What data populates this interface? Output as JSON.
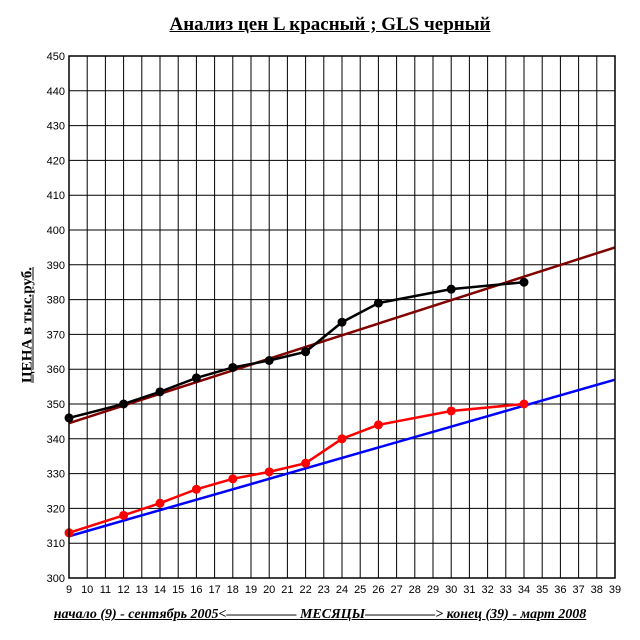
{
  "chart_data": {
    "type": "line",
    "title": "Анализ цен   L красный ; GLS черный",
    "xlabel": "начало (9)  - сентябрь 2005<————— МЕСЯЦЫ—————> конец (39)  - март 2008",
    "ylabel": "ЦЕНА в тыс.руб.",
    "xlim": [
      9,
      39
    ],
    "ylim": [
      300,
      450
    ],
    "x_ticks": [
      9,
      10,
      11,
      12,
      13,
      14,
      15,
      16,
      17,
      18,
      19,
      20,
      21,
      22,
      23,
      24,
      25,
      26,
      27,
      28,
      29,
      30,
      31,
      32,
      33,
      34,
      35,
      36,
      37,
      38,
      39
    ],
    "y_ticks": [
      300,
      310,
      320,
      330,
      340,
      350,
      360,
      370,
      380,
      390,
      400,
      410,
      420,
      430,
      440,
      450
    ],
    "grid": true,
    "legend": "none",
    "series": [
      {
        "name": "GLS",
        "color": "#000000",
        "x": [
          9,
          12,
          14,
          16,
          18,
          20,
          22,
          24,
          26,
          30,
          34
        ],
        "y": [
          346,
          350,
          353.5,
          357.5,
          360.5,
          362.5,
          365,
          373.5,
          379,
          383,
          385
        ]
      },
      {
        "name": "L",
        "color": "#ff0000",
        "x": [
          9,
          12,
          14,
          16,
          18,
          20,
          22,
          24,
          26,
          30,
          34
        ],
        "y": [
          313,
          318,
          321.5,
          325.5,
          328.5,
          330.5,
          333,
          340,
          344,
          348,
          350
        ]
      }
    ],
    "trendlines": [
      {
        "series": "GLS",
        "color": "#800000",
        "x": [
          9,
          39
        ],
        "y": [
          344.5,
          395
        ]
      },
      {
        "series": "L",
        "color": "#0000ff",
        "x": [
          9,
          39
        ],
        "y": [
          312,
          357
        ]
      }
    ]
  }
}
